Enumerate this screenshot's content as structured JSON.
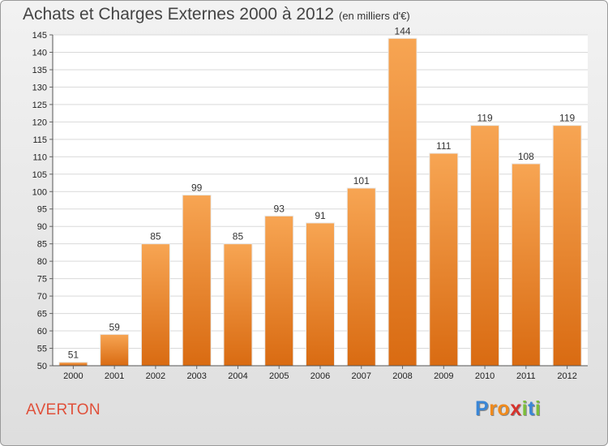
{
  "chart_data": {
    "type": "bar",
    "title": "Achats et Charges Externes 2000 à 2012",
    "unit_note": "(en milliers d'€)",
    "categories": [
      "2000",
      "2001",
      "2002",
      "2003",
      "2004",
      "2005",
      "2006",
      "2007",
      "2008",
      "2009",
      "2010",
      "2011",
      "2012"
    ],
    "values": [
      51,
      59,
      85,
      99,
      85,
      93,
      91,
      101,
      144,
      111,
      119,
      108,
      119
    ],
    "ylim": [
      50,
      145
    ],
    "yticks": [
      50,
      55,
      60,
      65,
      70,
      75,
      80,
      85,
      90,
      95,
      100,
      105,
      110,
      115,
      120,
      125,
      130,
      135,
      140,
      145
    ],
    "grid": true,
    "bar_color_top": "#f7a553",
    "bar_color_bottom": "#d96b12"
  },
  "commune": "AVERTON",
  "logo": {
    "letters": [
      "P",
      "r",
      "o",
      "x",
      "i",
      "t",
      "i"
    ],
    "colors": [
      "#3a86d6",
      "#f08a1c",
      "#f08a1c",
      "#d6332d",
      "#7cbf3a",
      "#3a86d6",
      "#7cbf3a"
    ]
  }
}
